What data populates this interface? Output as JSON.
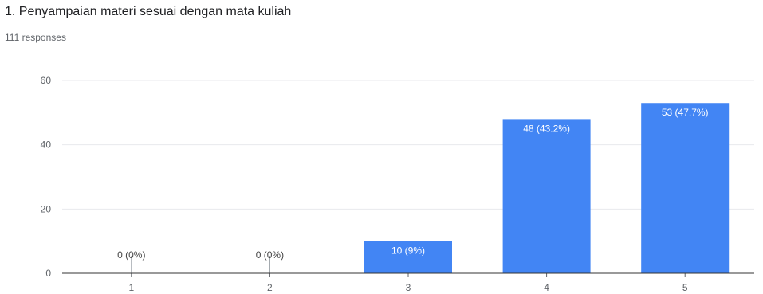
{
  "header": {
    "title": "1. Penyampaian materi sesuai dengan mata kuliah",
    "responses": "111 responses"
  },
  "colors": {
    "bar": "#4285f4",
    "grid": "#e8eaed",
    "axis": "#5f6368",
    "label_inside": "#ffffff",
    "label_outside": "#444444"
  },
  "chart_data": {
    "type": "bar",
    "title": "1. Penyampaian materi sesuai dengan mata kuliah",
    "categories": [
      "1",
      "2",
      "3",
      "4",
      "5"
    ],
    "values": [
      0,
      0,
      10,
      48,
      53
    ],
    "data_labels": [
      "0 (0%)",
      "0 (0%)",
      "10 (9%)",
      "48 (43.2%)",
      "53 (47.7%)"
    ],
    "yticks": [
      0,
      20,
      40,
      60
    ],
    "ylim": [
      0,
      60
    ],
    "xlabel": "",
    "ylabel": "",
    "grid": true,
    "legend": "none"
  }
}
